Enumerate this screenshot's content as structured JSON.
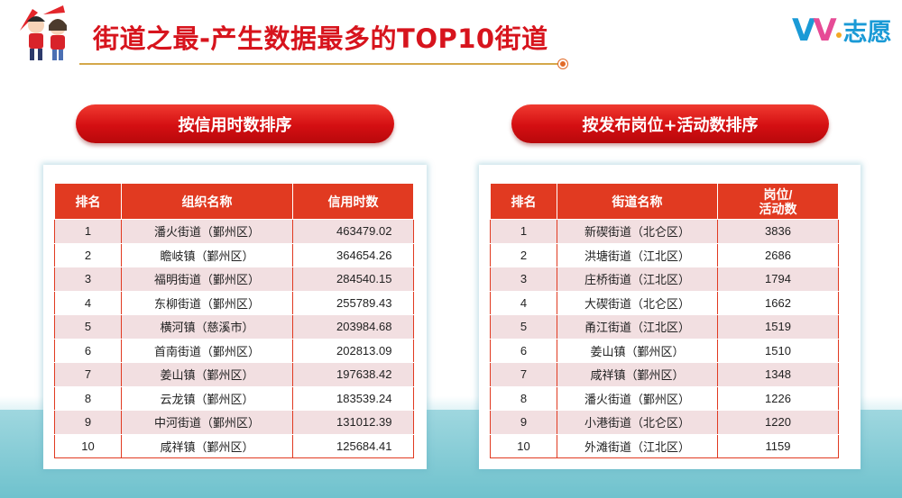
{
  "header": {
    "title": "街道之最-产生数据最多的TOP10街道",
    "brand_logo_text": "VV志愿"
  },
  "left": {
    "pill_label": "按信用时数排序",
    "columns": [
      "排名",
      "组织名称",
      "信用时数"
    ],
    "rows": [
      {
        "rank": "1",
        "name": "潘火街道（鄞州区）",
        "value": "463479.02"
      },
      {
        "rank": "2",
        "name": "瞻岐镇（鄞州区）",
        "value": "364654.26"
      },
      {
        "rank": "3",
        "name": "福明街道（鄞州区）",
        "value": "284540.15"
      },
      {
        "rank": "4",
        "name": "东柳街道（鄞州区）",
        "value": "255789.43"
      },
      {
        "rank": "5",
        "name": "横河镇（慈溪市）",
        "value": "203984.68"
      },
      {
        "rank": "6",
        "name": "首南街道（鄞州区）",
        "value": "202813.09"
      },
      {
        "rank": "7",
        "name": "姜山镇（鄞州区）",
        "value": "197638.42"
      },
      {
        "rank": "8",
        "name": "云龙镇（鄞州区）",
        "value": "183539.24"
      },
      {
        "rank": "9",
        "name": "中河街道（鄞州区）",
        "value": "131012.39"
      },
      {
        "rank": "10",
        "name": "咸祥镇（鄞州区）",
        "value": "125684.41"
      }
    ]
  },
  "right": {
    "pill_label": "按发布岗位+活动数排序",
    "columns": [
      "排名",
      "街道名称",
      "岗位/",
      "活动数"
    ],
    "rows": [
      {
        "rank": "1",
        "name": "新碶街道（北仑区）",
        "value": "3836"
      },
      {
        "rank": "2",
        "name": "洪塘街道（江北区）",
        "value": "2686"
      },
      {
        "rank": "3",
        "name": "庄桥街道（江北区）",
        "value": "1794"
      },
      {
        "rank": "4",
        "name": "大碶街道（北仑区）",
        "value": "1662"
      },
      {
        "rank": "5",
        "name": "甬江街道（江北区）",
        "value": "1519"
      },
      {
        "rank": "6",
        "name": "姜山镇（鄞州区）",
        "value": "1510"
      },
      {
        "rank": "7",
        "name": "咸祥镇（鄞州区）",
        "value": "1348"
      },
      {
        "rank": "8",
        "name": "潘火街道（鄞州区）",
        "value": "1226"
      },
      {
        "rank": "9",
        "name": "小港街道（北仑区）",
        "value": "1220"
      },
      {
        "rank": "10",
        "name": "外滩街道（江北区）",
        "value": "1159"
      }
    ]
  },
  "colors": {
    "title_red": "#d7141d",
    "header_red": "#e13a21",
    "stripe_pink": "#f2dfe1",
    "band_teal": "#6fc2cd",
    "brand_blue": "#1a9ad6"
  }
}
